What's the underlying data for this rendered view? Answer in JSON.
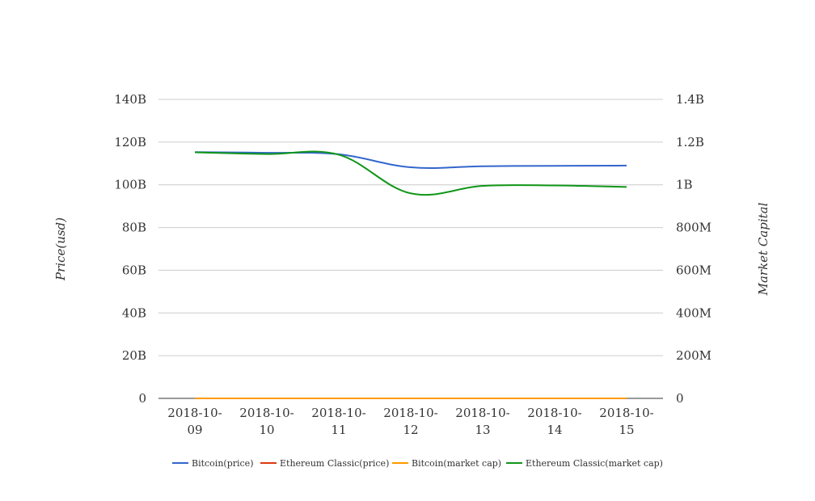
{
  "chart_data": {
    "type": "line",
    "categories": [
      "2018-10-09",
      "2018-10-10",
      "2018-10-11",
      "2018-10-12",
      "2018-10-13",
      "2018-10-14",
      "2018-10-15"
    ],
    "category_tick_lines": [
      [
        "2018-10-",
        "09"
      ],
      [
        "2018-10-",
        "10"
      ],
      [
        "2018-10-",
        "11"
      ],
      [
        "2018-10-",
        "12"
      ],
      [
        "2018-10-",
        "13"
      ],
      [
        "2018-10-",
        "14"
      ],
      [
        "2018-10-",
        "15"
      ]
    ],
    "ylabel_left": "Price(usd)",
    "ylabel_right": "Market Capital",
    "ylim_left": [
      0,
      140000000000
    ],
    "ylim_right": [
      0,
      1400000000
    ],
    "yticks_left": [
      "0",
      "20B",
      "40B",
      "60B",
      "80B",
      "100B",
      "120B",
      "140B"
    ],
    "yticks_right": [
      "0",
      "200M",
      "400M",
      "600M",
      "800M",
      "1B",
      "1.2B",
      "1.4B"
    ],
    "grid": true,
    "legend_position": "bottom",
    "series": [
      {
        "name": "Bitcoin(price)",
        "axis": "left",
        "color": "#3366cc",
        "values": [
          115300000000,
          115000000000,
          114300000000,
          108200000000,
          108700000000,
          108900000000,
          109000000000
        ]
      },
      {
        "name": "Ethereum Classic(price)",
        "axis": "left",
        "color": "#dc3912",
        "values": [
          0,
          0,
          0,
          0,
          0,
          0,
          0
        ]
      },
      {
        "name": "Bitcoin(market cap)",
        "axis": "left",
        "color": "#ff9900",
        "values": [
          0,
          0,
          0,
          0,
          0,
          0,
          0
        ]
      },
      {
        "name": "Ethereum Classic(market cap)",
        "axis": "right",
        "color": "#109618",
        "values": [
          1152000000,
          1144000000,
          1141000000,
          960000000,
          995000000,
          997000000,
          990000000
        ]
      }
    ]
  }
}
